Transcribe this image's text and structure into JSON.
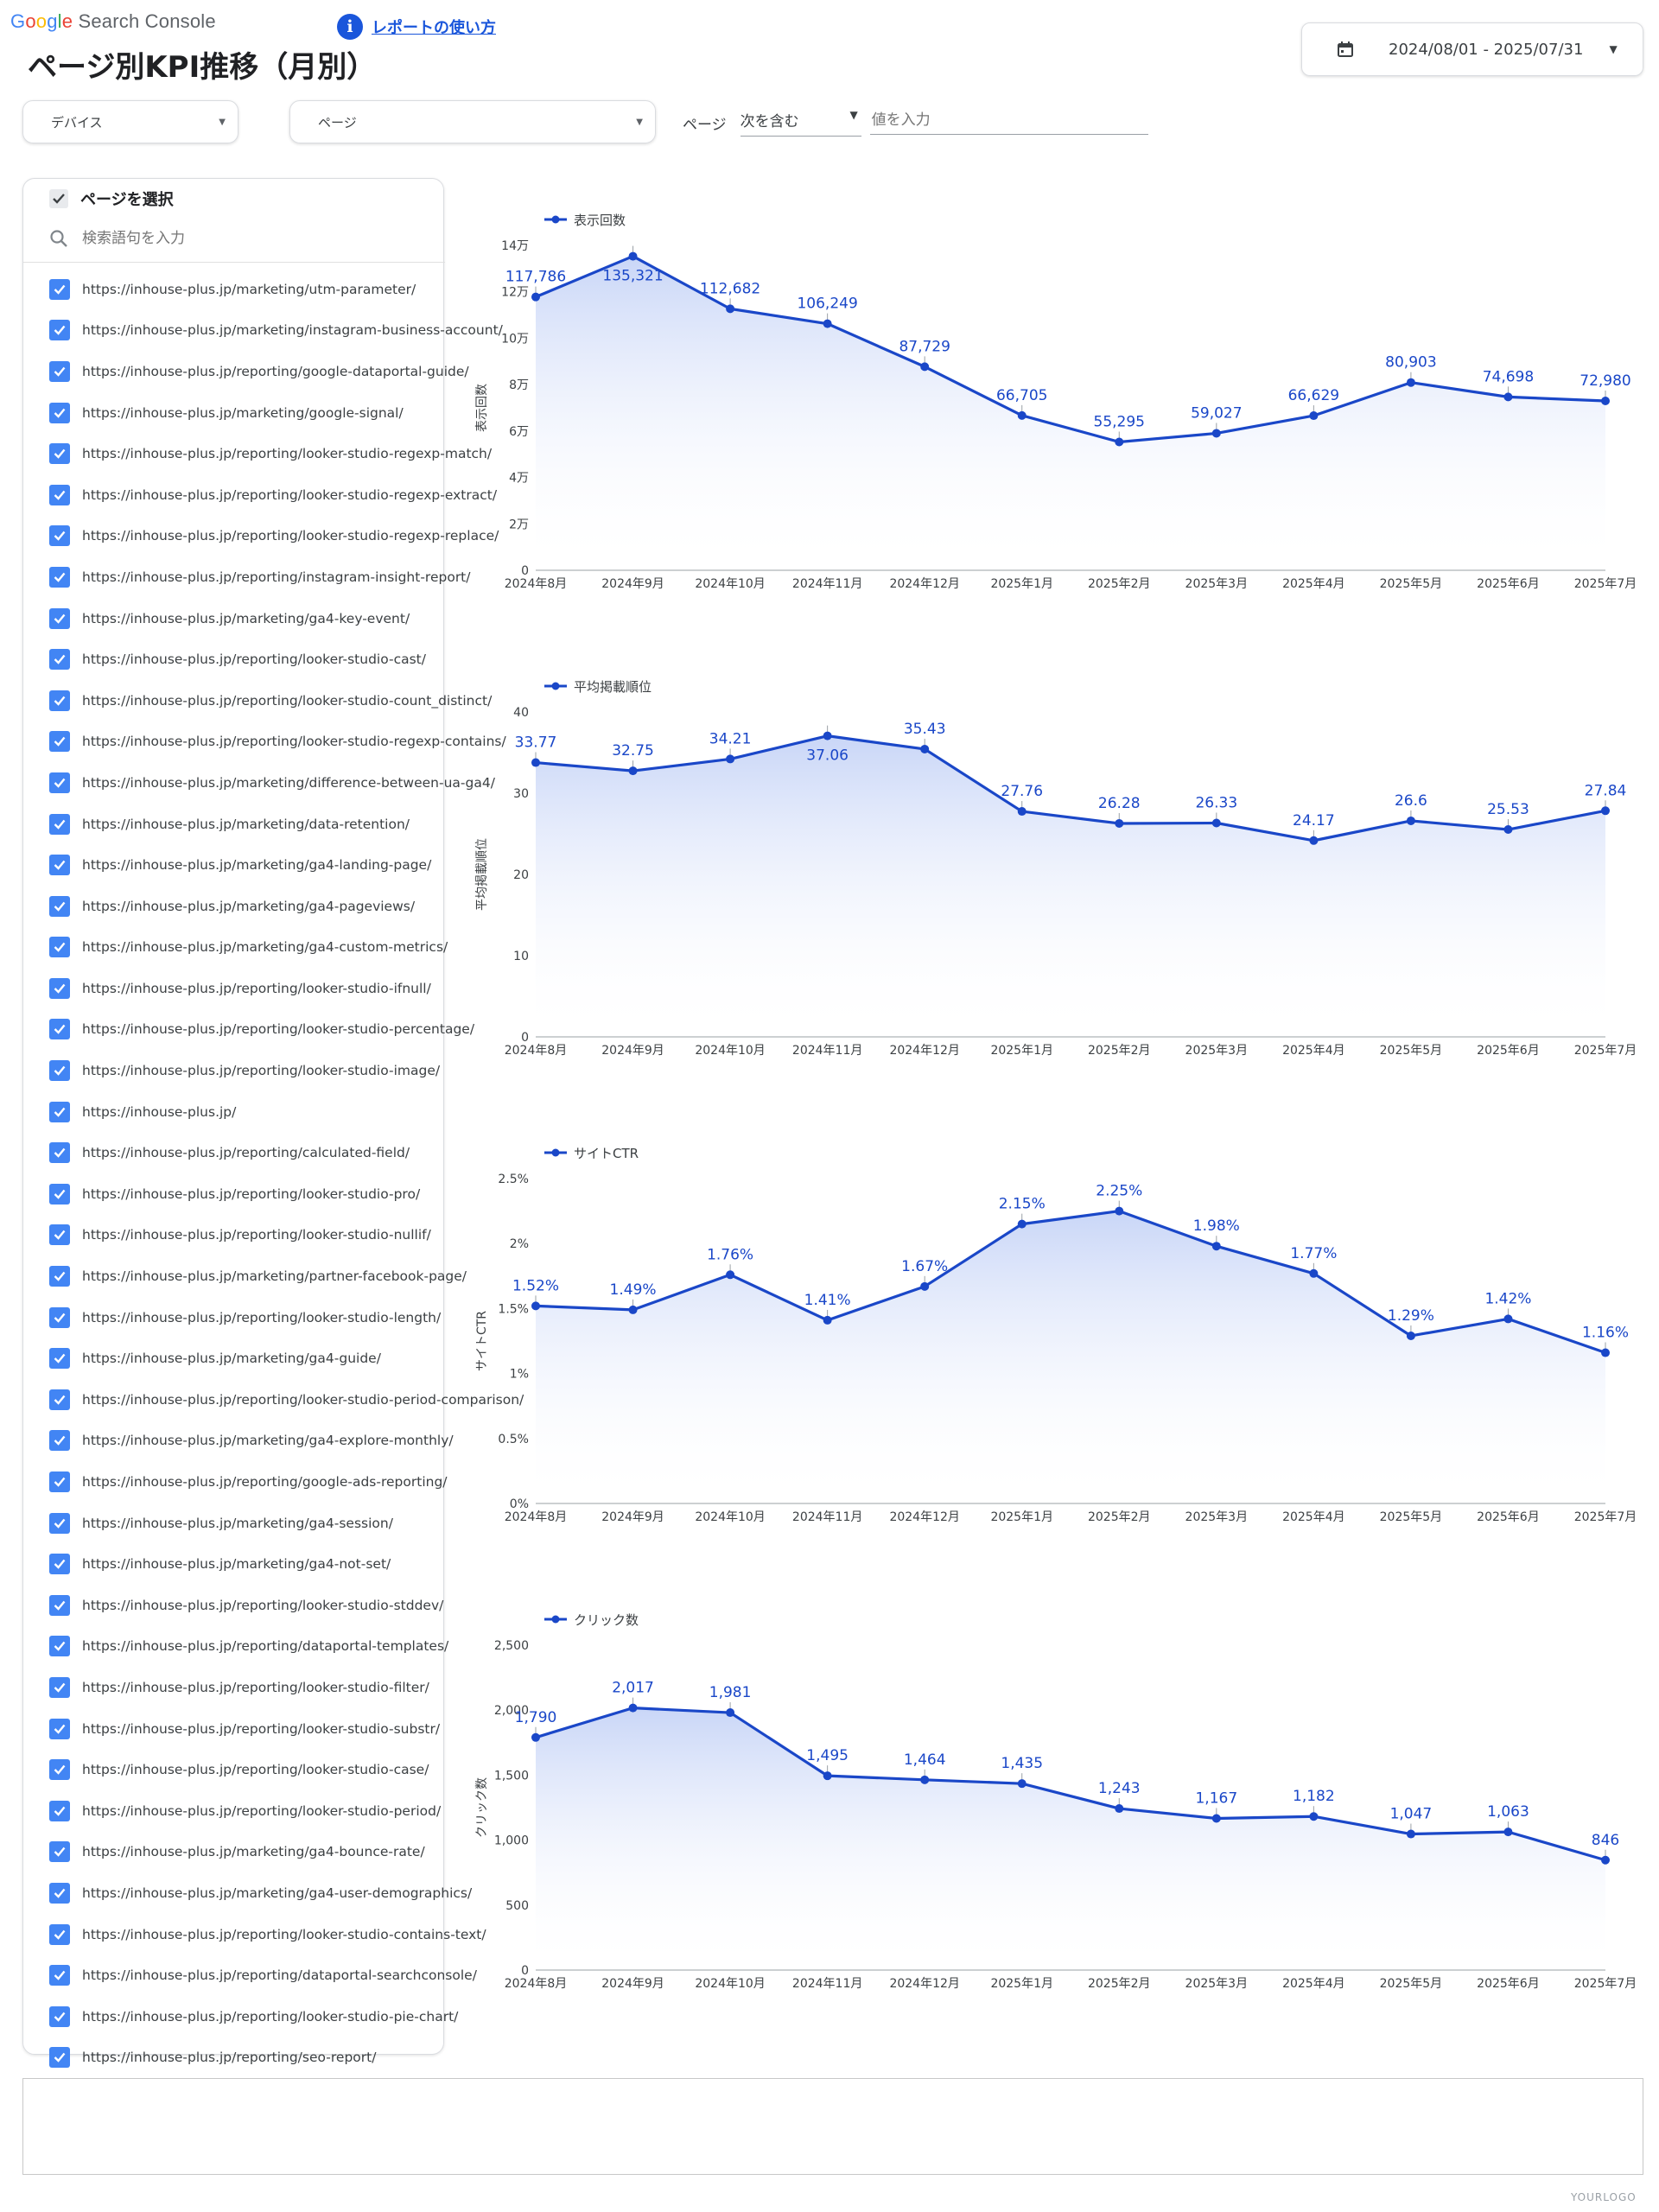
{
  "header": {
    "logo_google": [
      "G",
      "o",
      "o",
      "g",
      "l",
      "e"
    ],
    "logo_product": "Search Console",
    "help_icon": "info-icon",
    "help_link": "レポートの使い方",
    "title": "ページ別KPI推移（月別）",
    "date_range": "2024/08/01 - 2025/07/31"
  },
  "filters": {
    "device_label": "デバイス",
    "page_label": "ページ",
    "page_filter_label": "ページ",
    "operator": "次を含む",
    "value_placeholder": "値を入力"
  },
  "panel": {
    "header_label": "ページを選択",
    "search_placeholder": "検索語句を入力",
    "items": [
      "https://inhouse-plus.jp/marketing/utm-parameter/",
      "https://inhouse-plus.jp/marketing/instagram-business-account/",
      "https://inhouse-plus.jp/reporting/google-dataportal-guide/",
      "https://inhouse-plus.jp/marketing/google-signal/",
      "https://inhouse-plus.jp/reporting/looker-studio-regexp-match/",
      "https://inhouse-plus.jp/reporting/looker-studio-regexp-extract/",
      "https://inhouse-plus.jp/reporting/looker-studio-regexp-replace/",
      "https://inhouse-plus.jp/reporting/instagram-insight-report/",
      "https://inhouse-plus.jp/marketing/ga4-key-event/",
      "https://inhouse-plus.jp/reporting/looker-studio-cast/",
      "https://inhouse-plus.jp/reporting/looker-studio-count_distinct/",
      "https://inhouse-plus.jp/reporting/looker-studio-regexp-contains/",
      "https://inhouse-plus.jp/marketing/difference-between-ua-ga4/",
      "https://inhouse-plus.jp/marketing/data-retention/",
      "https://inhouse-plus.jp/marketing/ga4-landing-page/",
      "https://inhouse-plus.jp/marketing/ga4-pageviews/",
      "https://inhouse-plus.jp/marketing/ga4-custom-metrics/",
      "https://inhouse-plus.jp/reporting/looker-studio-ifnull/",
      "https://inhouse-plus.jp/reporting/looker-studio-percentage/",
      "https://inhouse-plus.jp/reporting/looker-studio-image/",
      "https://inhouse-plus.jp/",
      "https://inhouse-plus.jp/reporting/calculated-field/",
      "https://inhouse-plus.jp/reporting/looker-studio-pro/",
      "https://inhouse-plus.jp/reporting/looker-studio-nullif/",
      "https://inhouse-plus.jp/marketing/partner-facebook-page/",
      "https://inhouse-plus.jp/reporting/looker-studio-length/",
      "https://inhouse-plus.jp/marketing/ga4-guide/",
      "https://inhouse-plus.jp/reporting/looker-studio-period-comparison/",
      "https://inhouse-plus.jp/marketing/ga4-explore-monthly/",
      "https://inhouse-plus.jp/reporting/google-ads-reporting/",
      "https://inhouse-plus.jp/marketing/ga4-session/",
      "https://inhouse-plus.jp/marketing/ga4-not-set/",
      "https://inhouse-plus.jp/reporting/looker-studio-stddev/",
      "https://inhouse-plus.jp/reporting/dataportal-templates/",
      "https://inhouse-plus.jp/reporting/looker-studio-filter/",
      "https://inhouse-plus.jp/reporting/looker-studio-substr/",
      "https://inhouse-plus.jp/reporting/looker-studio-case/",
      "https://inhouse-plus.jp/reporting/looker-studio-period/",
      "https://inhouse-plus.jp/marketing/ga4-bounce-rate/",
      "https://inhouse-plus.jp/marketing/ga4-user-demographics/",
      "https://inhouse-plus.jp/reporting/looker-studio-contains-text/",
      "https://inhouse-plus.jp/reporting/dataportal-searchconsole/",
      "https://inhouse-plus.jp/reporting/looker-studio-pie-chart/",
      "https://inhouse-plus.jp/reporting/seo-report/"
    ]
  },
  "colors": {
    "line": "#1a47c8",
    "fill_top": "#c9d6f7",
    "axis": "#9aa0a6",
    "brand_blue": "#1a56db"
  },
  "chart_data": [
    {
      "type": "area",
      "legend": "表示回数",
      "ylabel": "表示回数",
      "categories": [
        "2024年8月",
        "2024年9月",
        "2024年10月",
        "2024年11月",
        "2024年12月",
        "2025年1月",
        "2025年2月",
        "2025年3月",
        "2025年4月",
        "2025年5月",
        "2025年6月",
        "2025年7月"
      ],
      "values": [
        117786,
        135321,
        112682,
        106249,
        87729,
        66705,
        55295,
        59027,
        66629,
        80903,
        74698,
        72980
      ],
      "data_labels": [
        "117,786",
        "135,321",
        "112,682",
        "106,249",
        "87,729",
        "66,705",
        "55,295",
        "59,027",
        "66,629",
        "80,903",
        "74,698",
        "72,980"
      ],
      "ylim": [
        0,
        140000
      ],
      "yticks": [
        0,
        20000,
        40000,
        60000,
        80000,
        100000,
        120000,
        140000
      ],
      "ytick_labels": [
        "0",
        "2万",
        "4万",
        "6万",
        "8万",
        "10万",
        "12万",
        "14万"
      ]
    },
    {
      "type": "area",
      "legend": "平均掲載順位",
      "ylabel": "平均掲載順位",
      "categories": [
        "2024年8月",
        "2024年9月",
        "2024年10月",
        "2024年11月",
        "2024年12月",
        "2025年1月",
        "2025年2月",
        "2025年3月",
        "2025年4月",
        "2025年5月",
        "2025年6月",
        "2025年7月"
      ],
      "values": [
        33.77,
        32.75,
        34.21,
        37.06,
        35.43,
        27.76,
        26.28,
        26.33,
        24.17,
        26.6,
        25.53,
        27.84
      ],
      "data_labels": [
        "33.77",
        "32.75",
        "34.21",
        "37.06",
        "35.43",
        "27.76",
        "26.28",
        "26.33",
        "24.17",
        "26.6",
        "25.53",
        "27.84"
      ],
      "ylim": [
        0,
        40
      ],
      "yticks": [
        0,
        10,
        20,
        30,
        40
      ],
      "ytick_labels": [
        "0",
        "10",
        "20",
        "30",
        "40"
      ]
    },
    {
      "type": "area",
      "legend": "サイトCTR",
      "ylabel": "サイトCTR",
      "categories": [
        "2024年8月",
        "2024年9月",
        "2024年10月",
        "2024年11月",
        "2024年12月",
        "2025年1月",
        "2025年2月",
        "2025年3月",
        "2025年4月",
        "2025年5月",
        "2025年6月",
        "2025年7月"
      ],
      "values": [
        1.52,
        1.49,
        1.76,
        1.41,
        1.67,
        2.15,
        2.25,
        1.98,
        1.77,
        1.29,
        1.42,
        1.16
      ],
      "data_labels": [
        "1.52%",
        "1.49%",
        "1.76%",
        "1.41%",
        "1.67%",
        "2.15%",
        "2.25%",
        "1.98%",
        "1.77%",
        "1.29%",
        "1.42%",
        "1.16%"
      ],
      "ylim": [
        0,
        2.5
      ],
      "yticks": [
        0,
        0.5,
        1,
        1.5,
        2,
        2.5
      ],
      "ytick_labels": [
        "0%",
        "0.5%",
        "1%",
        "1.5%",
        "2%",
        "2.5%"
      ]
    },
    {
      "type": "area",
      "legend": "クリック数",
      "ylabel": "クリック数",
      "categories": [
        "2024年8月",
        "2024年9月",
        "2024年10月",
        "2024年11月",
        "2024年12月",
        "2025年1月",
        "2025年2月",
        "2025年3月",
        "2025年4月",
        "2025年5月",
        "2025年6月",
        "2025年7月"
      ],
      "values": [
        1790,
        2017,
        1981,
        1495,
        1464,
        1435,
        1243,
        1167,
        1182,
        1047,
        1063,
        846
      ],
      "data_labels": [
        "1,790",
        "2,017",
        "1,981",
        "1,495",
        "1,464",
        "1,435",
        "1,243",
        "1,167",
        "1,182",
        "1,047",
        "1,063",
        "846"
      ],
      "ylim": [
        0,
        2500
      ],
      "yticks": [
        0,
        500,
        1000,
        1500,
        2000,
        2500
      ],
      "ytick_labels": [
        "0",
        "500",
        "1,000",
        "1,500",
        "2,000",
        "2,500"
      ]
    }
  ],
  "footer": {
    "watermark": "YOURLOGO"
  }
}
